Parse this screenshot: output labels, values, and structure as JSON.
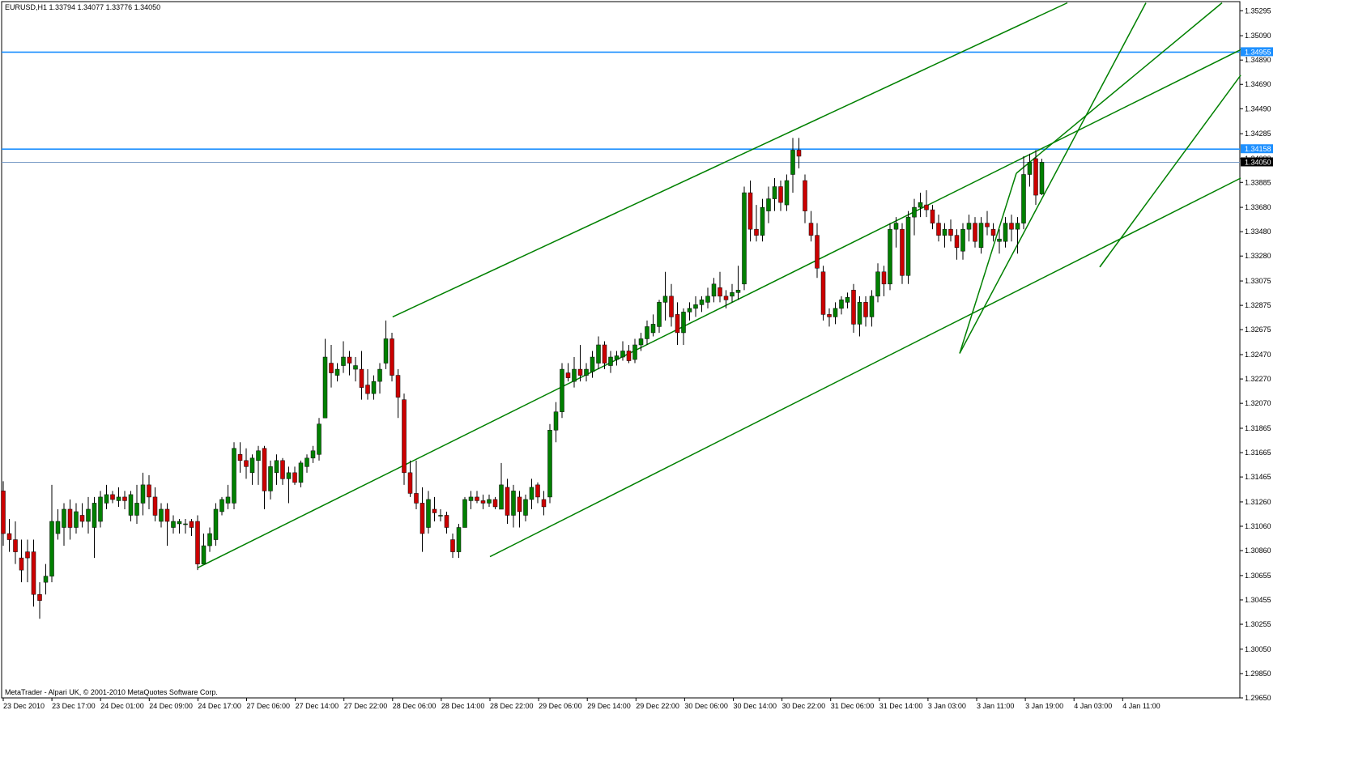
{
  "window": {
    "title": "EURUSD,H1  1.33794 1.34077 1.33776 1.34050",
    "footer": "MetaTrader - Alpari UK, © 2001-2010 MetaQuotes Software Corp."
  },
  "colors": {
    "background": "#ffffff",
    "bull_candle": "#008000",
    "bear_candle": "#cc0000",
    "wick": "#000000",
    "trendline": "#008000",
    "hline": "#1e90ff",
    "price_line": "#7a9cc6"
  },
  "chart_data": {
    "type": "candlestick",
    "symbol": "EURUSD",
    "timeframe": "H1",
    "ohlc_header": {
      "open": 1.33794,
      "high": 1.34077,
      "low": 1.33776,
      "close": 1.3405
    },
    "ylim": [
      1.2965,
      1.3537
    ],
    "y_ticks": [
      "1.35295",
      "1.35090",
      "1.34890",
      "1.34690",
      "1.34490",
      "1.34285",
      "1.34080",
      "1.33885",
      "1.33680",
      "1.33480",
      "1.33280",
      "1.33075",
      "1.32875",
      "1.32675",
      "1.32470",
      "1.32270",
      "1.32070",
      "1.31865",
      "1.31665",
      "1.31465",
      "1.31260",
      "1.31060",
      "1.30860",
      "1.30655",
      "1.30455",
      "1.30255",
      "1.30050",
      "1.29850",
      "1.29650"
    ],
    "x_ticks": [
      "23 Dec 2010",
      "23 Dec 17:00",
      "24 Dec 01:00",
      "24 Dec 09:00",
      "24 Dec 17:00",
      "27 Dec 06:00",
      "27 Dec 14:00",
      "27 Dec 22:00",
      "28 Dec 06:00",
      "28 Dec 14:00",
      "28 Dec 22:00",
      "29 Dec 06:00",
      "29 Dec 14:00",
      "29 Dec 22:00",
      "30 Dec 06:00",
      "30 Dec 14:00",
      "30 Dec 22:00",
      "31 Dec 06:00",
      "31 Dec 14:00",
      "3 Jan 03:00",
      "3 Jan 11:00",
      "3 Jan 19:00",
      "4 Jan 03:00",
      "4 Jan 11:00"
    ],
    "horizontal_lines": [
      {
        "value": 1.34955,
        "label": "1.34955"
      },
      {
        "value": 1.34158,
        "label": "1.34158"
      }
    ],
    "current_price": {
      "value": 1.3405,
      "label": "1.34050"
    },
    "candles": [
      [
        1.3135,
        1.3143,
        1.309,
        1.31
      ],
      [
        1.31,
        1.3112,
        1.3085,
        1.3095
      ],
      [
        1.3095,
        1.311,
        1.3075,
        1.3085
      ],
      [
        1.308,
        1.3095,
        1.306,
        1.307
      ],
      [
        1.3085,
        1.3095,
        1.306,
        1.308
      ],
      [
        1.3085,
        1.3095,
        1.304,
        1.305
      ],
      [
        1.305,
        1.306,
        1.303,
        1.3045
      ],
      [
        1.306,
        1.3075,
        1.305,
        1.3065
      ],
      [
        1.3065,
        1.314,
        1.306,
        1.311
      ],
      [
        1.31,
        1.312,
        1.3095,
        1.311
      ],
      [
        1.3105,
        1.3125,
        1.309,
        1.312
      ],
      [
        1.312,
        1.3128,
        1.3095,
        1.3105
      ],
      [
        1.3105,
        1.3125,
        1.31,
        1.3118
      ],
      [
        1.3115,
        1.3125,
        1.3105,
        1.311
      ],
      [
        1.311,
        1.313,
        1.31,
        1.312
      ],
      [
        1.3105,
        1.313,
        1.308,
        1.3125
      ],
      [
        1.311,
        1.3135,
        1.3105,
        1.313
      ],
      [
        1.3125,
        1.314,
        1.312,
        1.3132
      ],
      [
        1.3132,
        1.3135,
        1.3125,
        1.3128
      ],
      [
        1.3127,
        1.3138,
        1.3122,
        1.313
      ],
      [
        1.313,
        1.3135,
        1.312,
        1.3127
      ],
      [
        1.3115,
        1.3135,
        1.311,
        1.3132
      ],
      [
        1.3115,
        1.314,
        1.3108,
        1.3125
      ],
      [
        1.3125,
        1.315,
        1.3115,
        1.314
      ],
      [
        1.314,
        1.3148,
        1.312,
        1.313
      ],
      [
        1.313,
        1.3138,
        1.311,
        1.3115
      ],
      [
        1.311,
        1.3125,
        1.3105,
        1.312
      ],
      [
        1.312,
        1.3125,
        1.309,
        1.311
      ],
      [
        1.3105,
        1.3115,
        1.31,
        1.311
      ],
      [
        1.3108,
        1.3112,
        1.31,
        1.311
      ],
      [
        1.3108,
        1.3112,
        1.31,
        1.3108
      ],
      [
        1.311,
        1.3112,
        1.3098,
        1.3105
      ],
      [
        1.311,
        1.3115,
        1.307,
        1.3075
      ],
      [
        1.3075,
        1.31,
        1.3075,
        1.309
      ],
      [
        1.309,
        1.3105,
        1.3085,
        1.31
      ],
      [
        1.3095,
        1.3125,
        1.309,
        1.312
      ],
      [
        1.3118,
        1.313,
        1.3115,
        1.3128
      ],
      [
        1.3125,
        1.314,
        1.312,
        1.313
      ],
      [
        1.3125,
        1.3175,
        1.312,
        1.317
      ],
      [
        1.3165,
        1.3175,
        1.315,
        1.316
      ],
      [
        1.316,
        1.317,
        1.3145,
        1.3155
      ],
      [
        1.315,
        1.3165,
        1.314,
        1.3162
      ],
      [
        1.316,
        1.3172,
        1.314,
        1.3168
      ],
      [
        1.317,
        1.3172,
        1.312,
        1.3135
      ],
      [
        1.3135,
        1.316,
        1.3128,
        1.3155
      ],
      [
        1.315,
        1.3165,
        1.314,
        1.316
      ],
      [
        1.316,
        1.3162,
        1.314,
        1.3145
      ],
      [
        1.3145,
        1.3155,
        1.3125,
        1.315
      ],
      [
        1.315,
        1.3155,
        1.314,
        1.3142
      ],
      [
        1.3142,
        1.316,
        1.3138,
        1.3158
      ],
      [
        1.3155,
        1.3165,
        1.315,
        1.3162
      ],
      [
        1.3162,
        1.3172,
        1.3158,
        1.3168
      ],
      [
        1.3165,
        1.3195,
        1.316,
        1.319
      ],
      [
        1.3195,
        1.326,
        1.3195,
        1.3245
      ],
      [
        1.324,
        1.3255,
        1.322,
        1.3232
      ],
      [
        1.323,
        1.324,
        1.3225,
        1.3235
      ],
      [
        1.3238,
        1.3258,
        1.3232,
        1.3245
      ],
      [
        1.3245,
        1.325,
        1.323,
        1.324
      ],
      [
        1.3235,
        1.3245,
        1.3225,
        1.3238
      ],
      [
        1.3235,
        1.325,
        1.321,
        1.322
      ],
      [
        1.3222,
        1.3235,
        1.321,
        1.3215
      ],
      [
        1.3215,
        1.323,
        1.321,
        1.3225
      ],
      [
        1.3225,
        1.324,
        1.3215,
        1.3235
      ],
      [
        1.324,
        1.3275,
        1.3235,
        1.326
      ],
      [
        1.326,
        1.3265,
        1.3225,
        1.323
      ],
      [
        1.323,
        1.3235,
        1.3195,
        1.3212
      ],
      [
        1.321,
        1.3215,
        1.314,
        1.315
      ],
      [
        1.315,
        1.316,
        1.313,
        1.3133
      ],
      [
        1.3133,
        1.316,
        1.312,
        1.3125
      ],
      [
        1.3125,
        1.3138,
        1.3085,
        1.31
      ],
      [
        1.3105,
        1.3135,
        1.31,
        1.3128
      ],
      [
        1.312,
        1.313,
        1.311,
        1.3117
      ],
      [
        1.3115,
        1.312,
        1.311,
        1.3115
      ],
      [
        1.3115,
        1.3118,
        1.31,
        1.3105
      ],
      [
        1.3095,
        1.31,
        1.308,
        1.3085
      ],
      [
        1.3085,
        1.3108,
        1.308,
        1.3105
      ],
      [
        1.3105,
        1.313,
        1.3105,
        1.3128
      ],
      [
        1.3127,
        1.3135,
        1.312,
        1.313
      ],
      [
        1.313,
        1.3135,
        1.3125,
        1.3127
      ],
      [
        1.3127,
        1.3132,
        1.312,
        1.3125
      ],
      [
        1.3125,
        1.3132,
        1.3122,
        1.3128
      ],
      [
        1.3128,
        1.313,
        1.312,
        1.3122
      ],
      [
        1.312,
        1.3158,
        1.312,
        1.314
      ],
      [
        1.3138,
        1.3145,
        1.3108,
        1.3115
      ],
      [
        1.3115,
        1.314,
        1.3105,
        1.3135
      ],
      [
        1.313,
        1.3135,
        1.3105,
        1.3118
      ],
      [
        1.3115,
        1.3132,
        1.311,
        1.3128
      ],
      [
        1.3128,
        1.3145,
        1.312,
        1.3138
      ],
      [
        1.314,
        1.3142,
        1.3125,
        1.313
      ],
      [
        1.3128,
        1.3135,
        1.3115,
        1.3122
      ],
      [
        1.313,
        1.319,
        1.3125,
        1.3185
      ],
      [
        1.3185,
        1.3208,
        1.3175,
        1.32
      ],
      [
        1.32,
        1.324,
        1.3195,
        1.3235
      ],
      [
        1.3232,
        1.324,
        1.3225,
        1.3228
      ],
      [
        1.3225,
        1.3245,
        1.322,
        1.3235
      ],
      [
        1.3235,
        1.3255,
        1.3225,
        1.323
      ],
      [
        1.323,
        1.324,
        1.3225,
        1.3235
      ],
      [
        1.3233,
        1.325,
        1.3228,
        1.3245
      ],
      [
        1.324,
        1.3262,
        1.3235,
        1.3255
      ],
      [
        1.3255,
        1.3258,
        1.3235,
        1.324
      ],
      [
        1.3238,
        1.325,
        1.3232,
        1.3245
      ],
      [
        1.3243,
        1.325,
        1.3238,
        1.3246
      ],
      [
        1.3245,
        1.3258,
        1.3242,
        1.325
      ],
      [
        1.325,
        1.3255,
        1.324,
        1.3242
      ],
      [
        1.3243,
        1.326,
        1.324,
        1.3255
      ],
      [
        1.3255,
        1.3265,
        1.325,
        1.326
      ],
      [
        1.326,
        1.3275,
        1.3255,
        1.327
      ],
      [
        1.3265,
        1.328,
        1.3262,
        1.3272
      ],
      [
        1.327,
        1.3292,
        1.3265,
        1.329
      ],
      [
        1.329,
        1.3315,
        1.3275,
        1.3295
      ],
      [
        1.3295,
        1.3305,
        1.327,
        1.3278
      ],
      [
        1.328,
        1.329,
        1.3255,
        1.3265
      ],
      [
        1.3265,
        1.3285,
        1.3255,
        1.3282
      ],
      [
        1.3282,
        1.329,
        1.3275,
        1.3285
      ],
      [
        1.3285,
        1.3295,
        1.3278,
        1.3288
      ],
      [
        1.3288,
        1.3295,
        1.3282,
        1.3292
      ],
      [
        1.329,
        1.3302,
        1.3285,
        1.3295
      ],
      [
        1.3295,
        1.331,
        1.329,
        1.3305
      ],
      [
        1.3302,
        1.3315,
        1.329,
        1.3295
      ],
      [
        1.3295,
        1.33,
        1.3285,
        1.3292
      ],
      [
        1.3295,
        1.3305,
        1.329,
        1.3298
      ],
      [
        1.3298,
        1.332,
        1.3292,
        1.33
      ],
      [
        1.3305,
        1.3385,
        1.33,
        1.338
      ],
      [
        1.338,
        1.339,
        1.334,
        1.335
      ],
      [
        1.335,
        1.337,
        1.334,
        1.3345
      ],
      [
        1.3345,
        1.3375,
        1.334,
        1.3368
      ],
      [
        1.3365,
        1.3385,
        1.3355,
        1.3375
      ],
      [
        1.3375,
        1.3392,
        1.3365,
        1.3385
      ],
      [
        1.3385,
        1.339,
        1.3365,
        1.3372
      ],
      [
        1.337,
        1.3395,
        1.3365,
        1.339
      ],
      [
        1.3395,
        1.3425,
        1.338,
        1.3415
      ],
      [
        1.3415,
        1.3425,
        1.34,
        1.341
      ],
      [
        1.339,
        1.3395,
        1.3355,
        1.3365
      ],
      [
        1.3355,
        1.3365,
        1.334,
        1.3345
      ],
      [
        1.3345,
        1.3355,
        1.331,
        1.3318
      ],
      [
        1.3315,
        1.332,
        1.3275,
        1.328
      ],
      [
        1.328,
        1.3285,
        1.327,
        1.3278
      ],
      [
        1.3278,
        1.329,
        1.3272,
        1.3285
      ],
      [
        1.3285,
        1.3295,
        1.328,
        1.3292
      ],
      [
        1.329,
        1.3298,
        1.3285,
        1.3294
      ],
      [
        1.33,
        1.3305,
        1.3265,
        1.3272
      ],
      [
        1.3272,
        1.3295,
        1.3262,
        1.329
      ],
      [
        1.329,
        1.3295,
        1.327,
        1.3278
      ],
      [
        1.3278,
        1.33,
        1.327,
        1.3295
      ],
      [
        1.3295,
        1.3322,
        1.329,
        1.3315
      ],
      [
        1.3315,
        1.332,
        1.3295,
        1.3305
      ],
      [
        1.3305,
        1.3355,
        1.33,
        1.335
      ],
      [
        1.335,
        1.336,
        1.3335,
        1.3355
      ],
      [
        1.335,
        1.3355,
        1.3305,
        1.3312
      ],
      [
        1.3312,
        1.3365,
        1.3305,
        1.336
      ],
      [
        1.336,
        1.3375,
        1.3345,
        1.3368
      ],
      [
        1.3368,
        1.338,
        1.336,
        1.3372
      ],
      [
        1.337,
        1.3382,
        1.336,
        1.3366
      ],
      [
        1.3366,
        1.337,
        1.335,
        1.3355
      ],
      [
        1.3355,
        1.3362,
        1.334,
        1.3345
      ],
      [
        1.3345,
        1.3355,
        1.3335,
        1.335
      ],
      [
        1.335,
        1.3358,
        1.334,
        1.3345
      ],
      [
        1.3345,
        1.335,
        1.3325,
        1.3335
      ],
      [
        1.3332,
        1.3355,
        1.3325,
        1.335
      ],
      [
        1.335,
        1.3362,
        1.334,
        1.3355
      ],
      [
        1.3355,
        1.336,
        1.3335,
        1.334
      ],
      [
        1.3335,
        1.336,
        1.333,
        1.3355
      ],
      [
        1.3355,
        1.3365,
        1.3345,
        1.3352
      ],
      [
        1.335,
        1.3355,
        1.334,
        1.3345
      ],
      [
        1.334,
        1.335,
        1.333,
        1.3342
      ],
      [
        1.334,
        1.336,
        1.3335,
        1.3355
      ],
      [
        1.3355,
        1.3362,
        1.334,
        1.335
      ],
      [
        1.335,
        1.336,
        1.333,
        1.3355
      ],
      [
        1.3355,
        1.341,
        1.335,
        1.3395
      ],
      [
        1.3395,
        1.3412,
        1.3385,
        1.3405
      ],
      [
        1.3408,
        1.3415,
        1.337,
        1.3378
      ],
      [
        1.3379,
        1.3408,
        1.3378,
        1.3405
      ]
    ],
    "trendlines": [
      {
        "from": [
          "24 Dec 17:00",
          1.3072
        ],
        "to": [
          1532,
          1.34975
        ]
      },
      {
        "from": [
          "28 Dec 06:00",
          1.3278
        ],
        "to": [
          1318,
          1.3536
        ]
      },
      {
        "from": [
          "28 Dec 22:00",
          1.3081
        ],
        "to": [
          1532,
          1.3392
        ]
      },
      {
        "from": [
          1185,
          1.3248
        ],
        "to": [
          1415,
          1.3536
        ]
      },
      {
        "from": [
          1185,
          1.3248
        ],
        "to": [
          1255,
          1.3396
        ]
      },
      {
        "from": [
          1255,
          1.3396
        ],
        "to": [
          1509,
          1.3536
        ]
      },
      {
        "from": [
          1358,
          1.3319
        ],
        "to": [
          1532,
          1.34765
        ]
      },
      {
        "from": [
          1358,
          1.3319
        ],
        "to": [
          1368,
          1.3328
        ]
      }
    ]
  }
}
